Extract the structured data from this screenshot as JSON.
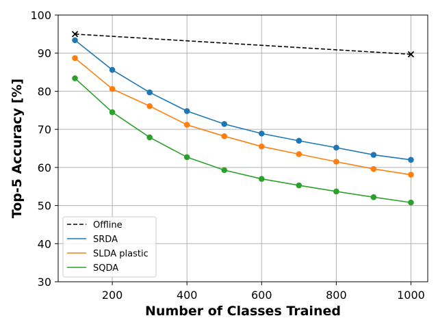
{
  "chart_data": {
    "type": "line",
    "title": "",
    "xlabel": "Number of Classes Trained",
    "ylabel": "Top-5 Accuracy [%]",
    "xlim": [
      55,
      1045
    ],
    "ylim": [
      30,
      100
    ],
    "x_ticks": [
      200,
      400,
      600,
      800,
      1000
    ],
    "y_ticks": [
      30,
      40,
      50,
      60,
      70,
      80,
      90,
      100
    ],
    "grid": true,
    "legend_position": "lower-left",
    "series": [
      {
        "name": "Offline",
        "color": "#000000",
        "line_style": "dashed",
        "marker": "x",
        "x": [
          100,
          1000
        ],
        "y": [
          95.0,
          89.7
        ]
      },
      {
        "name": "SRDA",
        "color": "#1f77b4",
        "line_style": "solid",
        "marker": "circle",
        "x": [
          100,
          200,
          300,
          400,
          500,
          600,
          700,
          800,
          900,
          1000
        ],
        "y": [
          93.4,
          85.6,
          79.7,
          74.8,
          71.4,
          68.9,
          67.0,
          65.2,
          63.3,
          62.0
        ]
      },
      {
        "name": "SLDA plastic",
        "color": "#ff7f0e",
        "line_style": "solid",
        "marker": "circle",
        "x": [
          100,
          200,
          300,
          400,
          500,
          600,
          700,
          800,
          900,
          1000
        ],
        "y": [
          88.7,
          80.6,
          76.1,
          71.2,
          68.2,
          65.5,
          63.5,
          61.5,
          59.6,
          58.1
        ]
      },
      {
        "name": "SQDA",
        "color": "#2ca02c",
        "line_style": "solid",
        "marker": "circle",
        "x": [
          100,
          200,
          300,
          400,
          500,
          600,
          700,
          800,
          900,
          1000
        ],
        "y": [
          83.4,
          74.5,
          67.9,
          62.7,
          59.3,
          57.0,
          55.3,
          53.7,
          52.2,
          50.8
        ]
      }
    ]
  }
}
